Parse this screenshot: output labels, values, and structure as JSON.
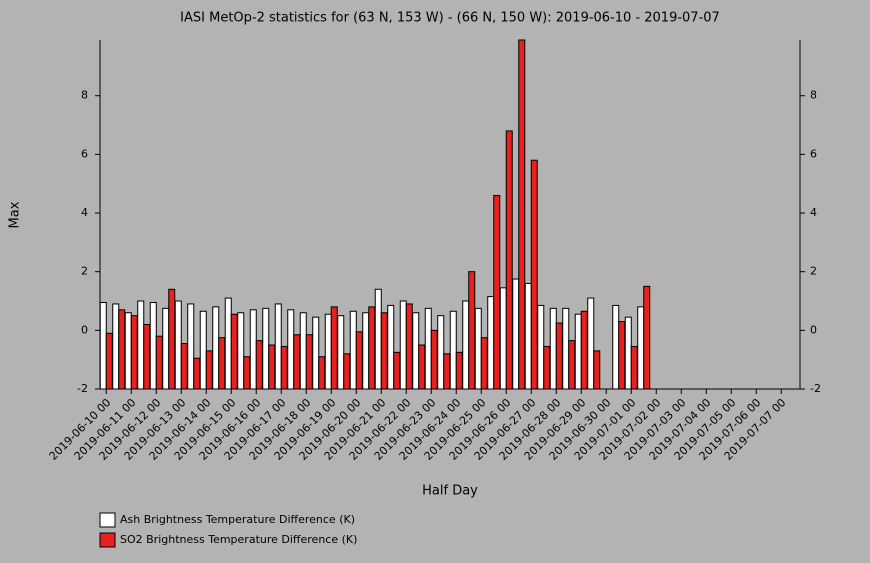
{
  "chart_data": {
    "type": "bar",
    "title": "IASI MetOp-2 statistics for (63 N, 153 W) - (66 N, 150 W): 2019-06-10 - 2019-07-07",
    "x_label": "Half Day",
    "y_label": "Max",
    "categories": [
      "2019-06-10 00",
      null,
      "2019-06-11 00",
      null,
      "2019-06-12 00",
      null,
      "2019-06-13 00",
      null,
      "2019-06-14 00",
      null,
      "2019-06-15 00",
      null,
      "2019-06-16 00",
      null,
      "2019-06-17 00",
      null,
      "2019-06-18 00",
      null,
      "2019-06-19 00",
      null,
      "2019-06-20 00",
      null,
      "2019-06-21 00",
      null,
      "2019-06-22 00",
      null,
      "2019-06-23 00",
      null,
      "2019-06-24 00",
      null,
      "2019-06-25 00",
      null,
      "2019-06-26 00",
      null,
      "2019-06-27 00",
      null,
      "2019-06-28 00",
      null,
      "2019-06-29 00",
      null,
      "2019-06-30 00",
      null,
      "2019-07-01 00",
      null,
      "2019-07-02 00",
      null,
      "2019-07-03 00",
      null,
      "2019-07-04 00",
      null,
      "2019-07-05 00",
      null,
      "2019-07-06 00",
      null,
      "2019-07-07 00",
      null
    ],
    "series": [
      {
        "name": "Ash Brightness Temperature Difference (K)",
        "color": "#ffffff",
        "values": [
          0.95,
          0.9,
          0.6,
          1.0,
          0.95,
          0.75,
          1.0,
          0.9,
          0.65,
          0.8,
          1.1,
          0.6,
          0.7,
          0.75,
          0.9,
          0.7,
          0.6,
          0.45,
          0.55,
          0.5,
          0.65,
          0.6,
          1.4,
          0.85,
          1.0,
          0.6,
          0.75,
          0.5,
          0.65,
          1.0,
          0.75,
          1.15,
          1.45,
          1.75,
          1.6,
          0.85,
          0.75,
          0.75,
          0.55,
          1.1,
          null,
          0.85,
          0.45,
          0.8,
          null,
          null,
          null,
          null,
          null,
          null,
          null,
          null,
          null,
          null,
          null,
          null
        ]
      },
      {
        "name": "SO2 Brightness Temperature Difference (K)",
        "color": "#e8211f",
        "values": [
          -0.1,
          0.7,
          0.5,
          0.2,
          -0.2,
          1.4,
          -0.45,
          -0.95,
          -0.7,
          -0.25,
          0.55,
          -0.9,
          -0.35,
          -0.5,
          -0.55,
          -0.15,
          -0.15,
          -0.9,
          0.8,
          -0.8,
          -0.05,
          0.8,
          0.6,
          -0.75,
          0.9,
          -0.5,
          0.0,
          -0.8,
          -0.75,
          2.0,
          -0.25,
          4.6,
          6.8,
          9.9,
          5.8,
          -0.55,
          0.25,
          -0.35,
          0.65,
          -0.7,
          null,
          0.3,
          -0.55,
          1.5,
          null,
          null,
          null,
          null,
          null,
          null,
          null,
          null,
          null,
          null,
          null,
          null
        ]
      }
    ],
    "ylim": [
      -2,
      9.9
    ],
    "yticks": [
      -2,
      0,
      2,
      4,
      6,
      8
    ]
  }
}
